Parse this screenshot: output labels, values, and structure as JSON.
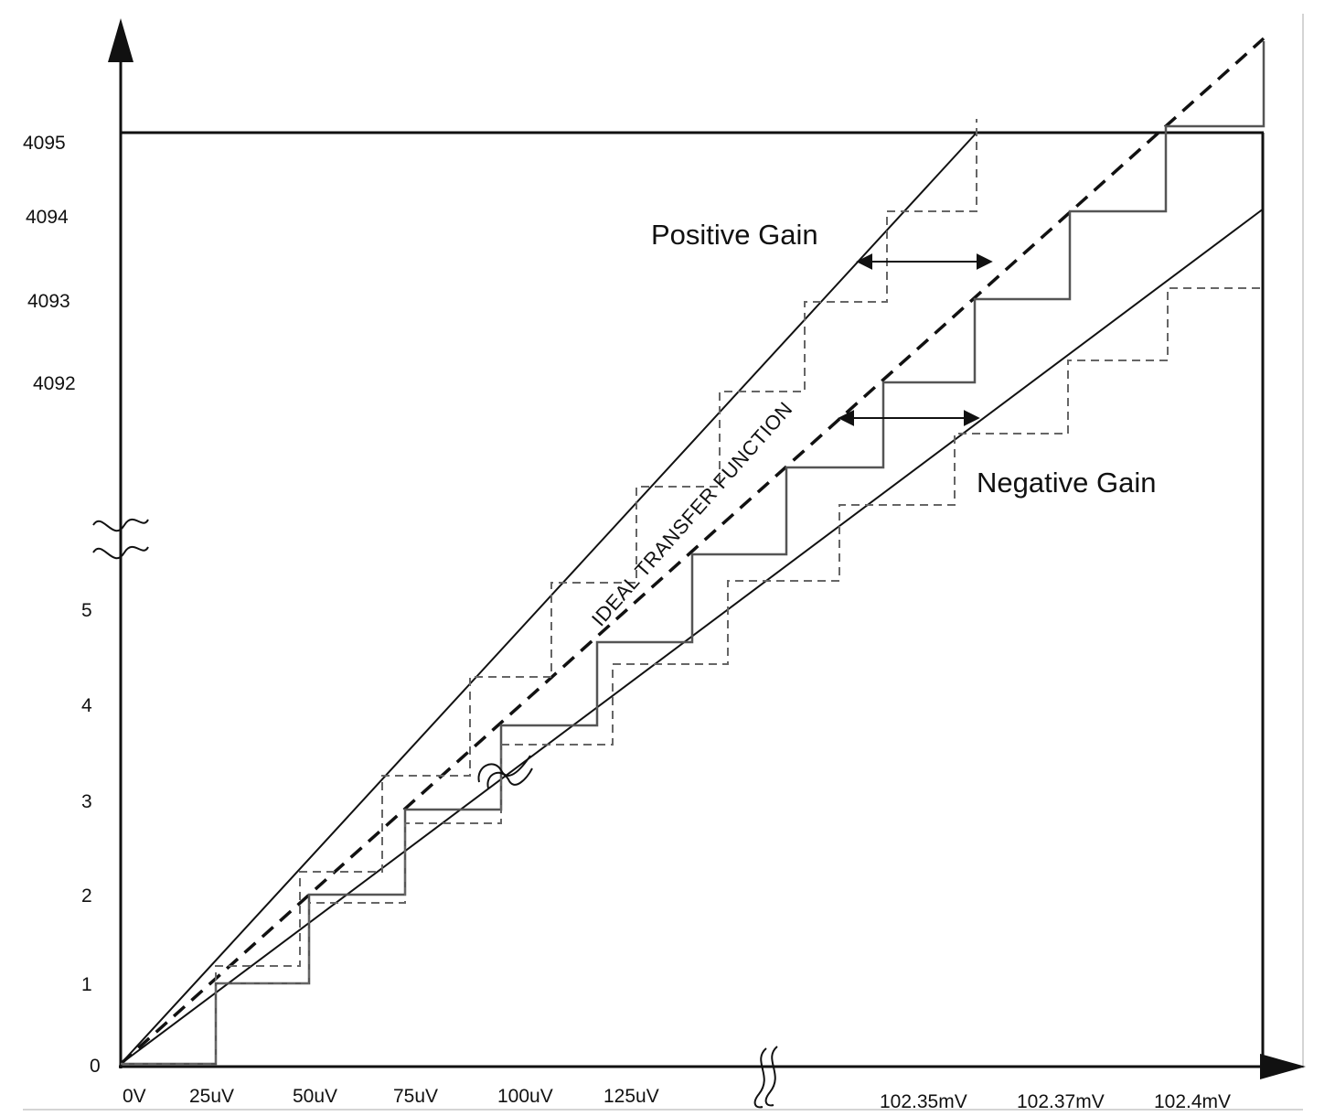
{
  "y_ticks": [
    "0",
    "1",
    "2",
    "3",
    "4",
    "5",
    "4092",
    "4093",
    "4094",
    "4095"
  ],
  "x_ticks": [
    "0V",
    "25uV",
    "50uV",
    "75uV",
    "100uV",
    "125uV",
    "102.35mV",
    "102.37mV",
    "102.4mV"
  ],
  "labels": {
    "positive_gain": "Positive Gain",
    "negative_gain": "Negative Gain",
    "ideal": "IDEAL TRANSFER FUNCTION"
  },
  "colors": {
    "axis": "#111111",
    "ideal_line": "#111111",
    "stair_solid": "#666666",
    "stair_dashed": "#777777"
  }
}
